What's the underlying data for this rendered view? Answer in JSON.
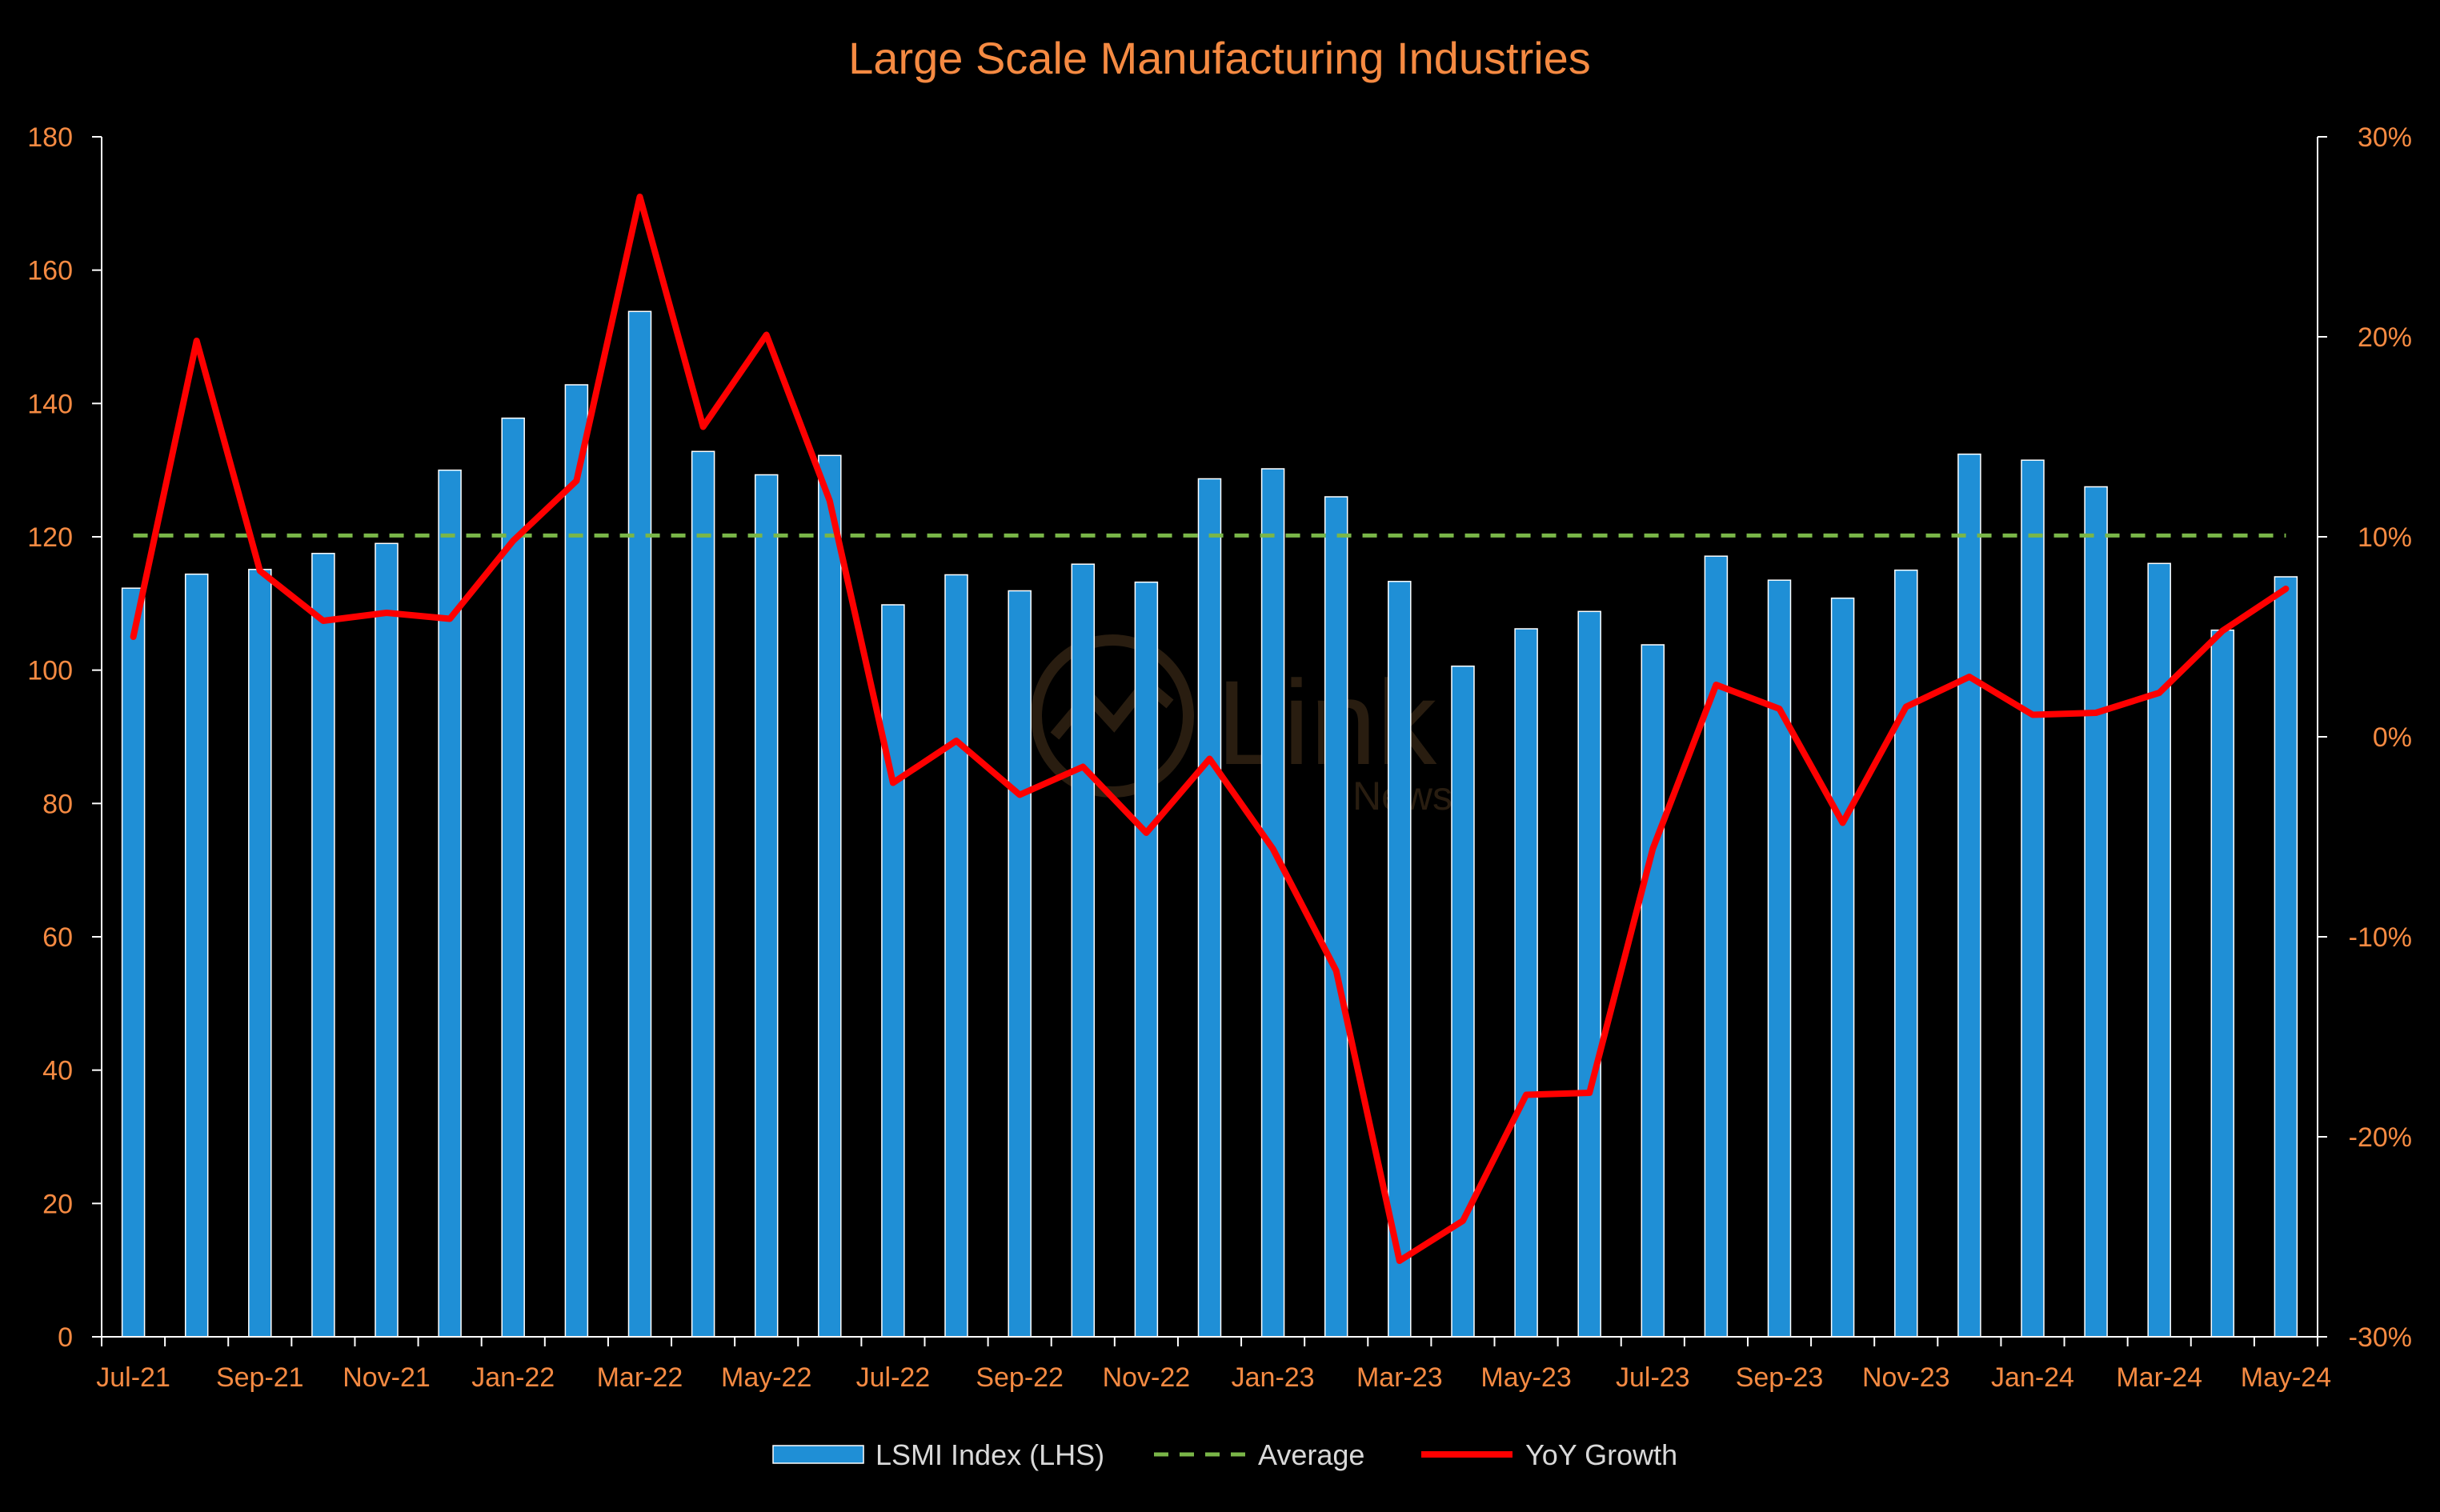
{
  "colors": {
    "background": "#000000",
    "title": "#f58a42",
    "tick_label": "#f58a42",
    "axis": "#ffffff",
    "bar_fill": "#1f8fd6",
    "bar_edge": "#ffffff",
    "average_line": "#7ab648",
    "growth_line": "#ff0000",
    "legend_text": "#d9d9d9"
  },
  "watermark": {
    "text": "Link",
    "sub": "News"
  },
  "chart_data": {
    "type": "bar",
    "title": "Large Scale Manufacturing Industries",
    "categories": [
      "Jul-21",
      "Aug-21",
      "Sep-21",
      "Oct-21",
      "Nov-21",
      "Dec-21",
      "Jan-22",
      "Feb-22",
      "Mar-22",
      "Apr-22",
      "May-22",
      "Jun-22",
      "Jul-22",
      "Aug-22",
      "Sep-22",
      "Oct-22",
      "Nov-22",
      "Dec-22",
      "Jan-23",
      "Feb-23",
      "Mar-23",
      "Apr-23",
      "May-23",
      "Jun-23",
      "Jul-23",
      "Aug-23",
      "Sep-23",
      "Oct-23",
      "Nov-23",
      "Dec-23",
      "Jan-24",
      "Feb-24",
      "Mar-24",
      "Apr-24",
      "May-24"
    ],
    "x_tick_labels": [
      "Jul-21",
      "Sep-21",
      "Nov-21",
      "Jan-22",
      "Mar-22",
      "May-22",
      "Jul-22",
      "Sep-22",
      "Nov-22",
      "Jan-23",
      "Mar-23",
      "May-23",
      "Jul-23",
      "Sep-23",
      "Nov-23",
      "Jan-24",
      "Mar-24",
      "May-24"
    ],
    "y_left": {
      "ylim": [
        0,
        180
      ],
      "ticks": [
        0,
        20,
        40,
        60,
        80,
        100,
        120,
        140,
        160,
        180
      ],
      "tick_labels": [
        "0",
        "20",
        "40",
        "60",
        "80",
        "100",
        "120",
        "140",
        "160",
        "180"
      ]
    },
    "y_right": {
      "ylim": [
        -30,
        30
      ],
      "ticks": [
        -30,
        -20,
        -10,
        0,
        10,
        20,
        30
      ],
      "tick_labels": [
        "-30%",
        "-20%",
        "-10%",
        "0%",
        "10%",
        "20%",
        "30%"
      ]
    },
    "grid": false,
    "legend_position": "bottom",
    "series": [
      {
        "name": "LSMI Index (LHS)",
        "type": "bar",
        "axis": "left",
        "values": [
          112.3,
          114.4,
          115.1,
          117.5,
          119.0,
          130.0,
          137.8,
          142.8,
          153.8,
          132.8,
          129.3,
          132.2,
          109.8,
          114.3,
          111.9,
          115.9,
          113.2,
          128.7,
          130.2,
          126.0,
          113.3,
          100.6,
          106.2,
          108.8,
          103.8,
          117.1,
          113.5,
          110.8,
          115.0,
          132.4,
          131.5,
          127.5,
          116.0,
          106.0,
          114.0
        ]
      },
      {
        "name": "Average",
        "type": "line",
        "style": "dashed",
        "axis": "left",
        "value": 120.2
      },
      {
        "name": "YoY Growth",
        "type": "line",
        "axis": "right",
        "values": [
          5.0,
          19.8,
          8.3,
          5.8,
          6.2,
          5.9,
          9.8,
          12.8,
          27.0,
          15.5,
          20.1,
          11.8,
          -2.3,
          -0.2,
          -2.9,
          -1.5,
          -4.8,
          -1.1,
          -5.6,
          -11.7,
          -26.2,
          -24.2,
          -17.9,
          -17.8,
          -5.6,
          2.6,
          1.4,
          -4.3,
          1.5,
          3.0,
          1.1,
          1.2,
          2.2,
          5.3,
          7.4
        ]
      }
    ]
  }
}
